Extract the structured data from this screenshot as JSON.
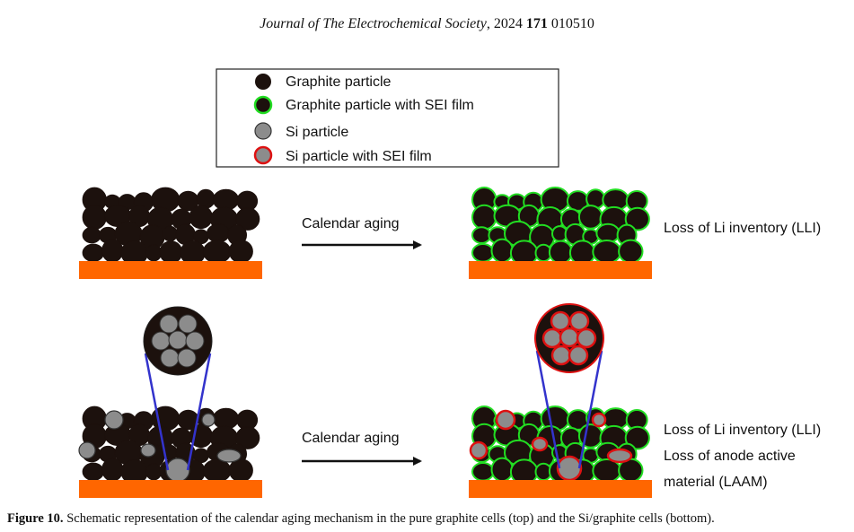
{
  "header": {
    "journal": "Journal of The Electrochemical Society",
    "year_prefix": ", 2024 ",
    "volume": "171",
    "article": " 010510"
  },
  "legend": {
    "items": [
      {
        "label": "Graphite particle",
        "icon": "graphite-particle-icon"
      },
      {
        "label": "Graphite particle with SEI film",
        "icon": "graphite-sei-icon"
      },
      {
        "label": "Si particle",
        "icon": "si-particle-icon"
      },
      {
        "label": "Si particle with SEI film",
        "icon": "si-sei-icon"
      }
    ]
  },
  "top_row": {
    "arrow_label": "Calendar aging",
    "result_label": "Loss of Li inventory (LLI)"
  },
  "bottom_row": {
    "arrow_label": "Calendar aging",
    "result_line1": "Loss of Li inventory (LLI)",
    "result_line2": "Loss of anode active",
    "result_line3": "material (LAAM)"
  },
  "caption": {
    "label": "Figure 10.",
    "text": " Schematic representation of the calendar aging mechanism in the pure graphite cells (top) and the Si/graphite cells (bottom)."
  },
  "colors": {
    "graphite": "#1c110d",
    "sei_green": "#22dd22",
    "si_gray": "#8c8c8c",
    "sei_red": "#dd1111",
    "collector": "#ff6600",
    "zoom_line": "#3333cc"
  }
}
